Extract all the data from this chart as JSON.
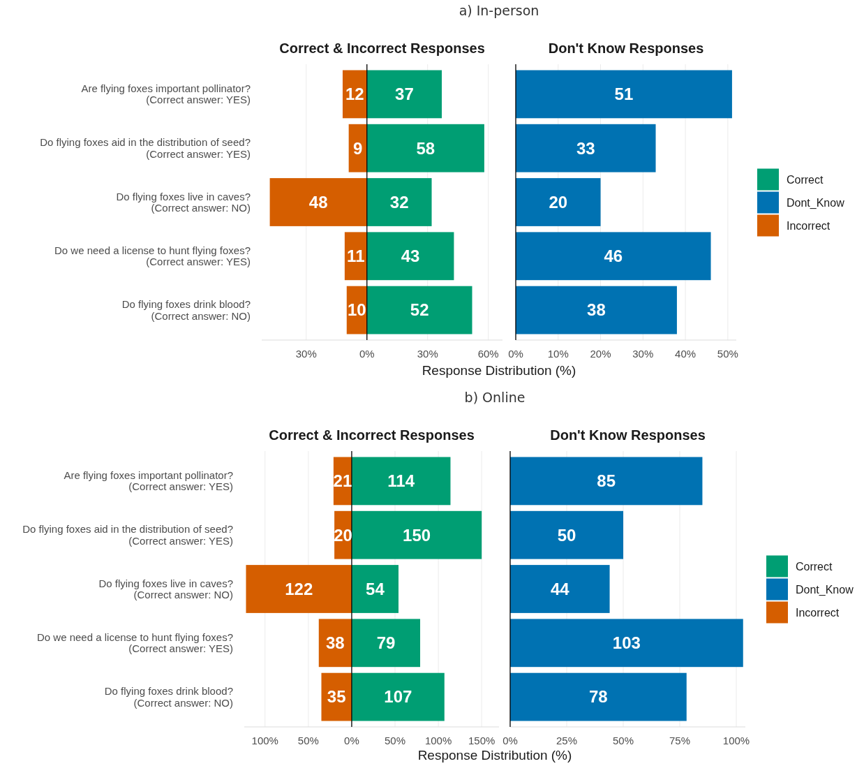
{
  "chart_data": [
    {
      "type": "bar",
      "orientation": "horizontal",
      "stacked": true,
      "legend": "right",
      "title": "Correct & Incorrect Responses",
      "xlabel": "Response Distribution (%)",
      "annotations": [
        "a) In-person"
      ],
      "categories": [
        "Are flying foxes important pollinator?\n(Correct answer: YES)",
        "Do flying foxes aid in the distribution of seed?\n(Correct answer: YES)",
        "Do flying foxes live in caves?\n(Correct answer: NO)",
        "Do we need a license to hunt flying foxes?\n(Correct answer: YES)",
        "Do flying foxes drink blood?\n(Correct answer: NO)"
      ],
      "series": [
        {
          "name": "Correct",
          "color": "#009e73",
          "values": [
            37,
            58,
            32,
            43,
            52
          ]
        },
        {
          "name": "Incorrect",
          "color": "#d55e00",
          "values": [
            -12,
            -9,
            -48,
            -11,
            -10
          ]
        }
      ],
      "value_labels": [
        [
          "37",
          "58",
          "32",
          "43",
          "52"
        ],
        [
          "12",
          "9",
          "48",
          "11",
          "10"
        ]
      ],
      "xlim": [
        -52,
        67
      ],
      "xticks": [
        {
          "value": -30,
          "label": "30%"
        },
        {
          "value": 0,
          "label": "0%"
        },
        {
          "value": 30,
          "label": "30%"
        },
        {
          "value": 60,
          "label": "60%"
        }
      ],
      "grid": "x"
    },
    {
      "type": "bar",
      "orientation": "horizontal",
      "title": "Don't Know Responses",
      "legend": "right",
      "tick_labels": "x",
      "series": [
        {
          "name": "Dont_Know",
          "color": "#0072b2",
          "values": [
            51,
            33,
            20,
            46,
            38
          ]
        }
      ],
      "data_labels": true,
      "xlim": [
        0,
        52
      ],
      "xticks": [
        {
          "value": 0,
          "label": "0%"
        },
        {
          "value": 10,
          "label": "10%"
        },
        {
          "value": 20,
          "label": "20%"
        },
        {
          "value": 30,
          "label": "30%"
        },
        {
          "value": 40,
          "label": "40%"
        },
        {
          "value": 50,
          "label": "50%"
        }
      ],
      "grid": "x"
    },
    {
      "type": "bar",
      "orientation": "horizontal",
      "stacked": true,
      "legend": "right",
      "title": "Correct & Incorrect Responses",
      "xlabel": "Response Distribution (%)",
      "annotations": [
        "b) Online"
      ],
      "categories": [
        "Are flying foxes important pollinator?\n(Correct answer: YES)",
        "Do flying foxes aid in the distribution of seed?\n(Correct answer: YES)",
        "Do flying foxes live in caves?\n(Correct answer: NO)",
        "Do we need a license to hunt flying foxes?\n(Correct answer: YES)",
        "Do flying foxes drink blood?\n(Correct answer: NO)"
      ],
      "series": [
        {
          "name": "Correct",
          "color": "#009e73",
          "values": [
            114,
            150,
            54,
            79,
            107
          ]
        },
        {
          "name": "Incorrect",
          "color": "#d55e00",
          "values": [
            -21,
            -20,
            -122,
            -38,
            -35
          ]
        }
      ],
      "value_labels": [
        [
          "114",
          "150",
          "54",
          "79",
          "107"
        ],
        [
          "21",
          "20",
          "122",
          "38",
          "35"
        ]
      ],
      "xlim": [
        -124,
        170
      ],
      "xticks": [
        {
          "value": -100,
          "label": "100%"
        },
        {
          "value": -50,
          "label": "50%"
        },
        {
          "value": 0,
          "label": "0%"
        },
        {
          "value": 50,
          "label": "50%"
        },
        {
          "value": 100,
          "label": "100%"
        },
        {
          "value": 150,
          "label": "150%"
        }
      ],
      "grid": "x"
    },
    {
      "type": "bar",
      "orientation": "horizontal",
      "title": "Don't Know Responses",
      "legend": "right",
      "tick_labels": "x",
      "series": [
        {
          "name": "Dont_Know",
          "color": "#0072b2",
          "values": [
            85,
            50,
            44,
            103,
            78
          ]
        }
      ],
      "data_labels": true,
      "xlim": [
        0,
        104
      ],
      "xticks": [
        {
          "value": 0,
          "label": "0%"
        },
        {
          "value": 25,
          "label": "25%"
        },
        {
          "value": 50,
          "label": "50%"
        },
        {
          "value": 75,
          "label": "75%"
        },
        {
          "value": 100,
          "label": "100%"
        }
      ],
      "grid": "x"
    }
  ]
}
